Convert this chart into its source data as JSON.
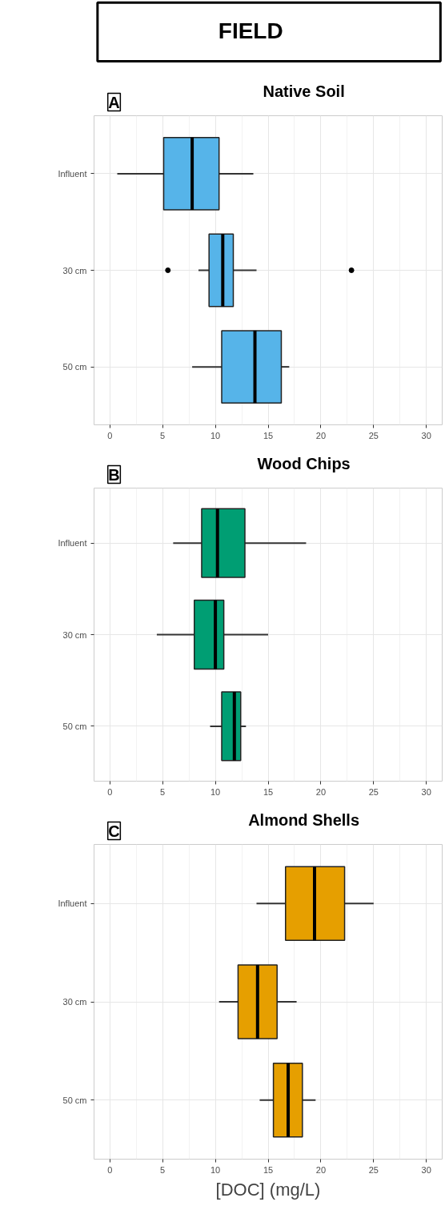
{
  "chart_data": [
    {
      "type": "box",
      "orientation": "horizontal",
      "title": "Native Soil",
      "annotations": [
        "FIELD",
        "A"
      ],
      "categories": [
        "Influent",
        "30 cm",
        "50 cm"
      ],
      "xlim": [
        -1.5,
        31.5
      ],
      "xticks": [
        0,
        5,
        10,
        15,
        20,
        25,
        30
      ],
      "grid": true,
      "series": [
        {
          "color": "#56b4e9",
          "boxes": [
            {
              "low": 0.7,
              "q1": 5.1,
              "median": 7.8,
              "q3": 10.35,
              "high": 13.6
            },
            {
              "low": 8.4,
              "q1": 9.4,
              "median": 10.7,
              "q3": 11.7,
              "high": 13.9,
              "outliers": [
                5.5,
                22.9
              ]
            },
            {
              "low": 7.8,
              "q1": 10.6,
              "median": 13.75,
              "q3": 16.25,
              "high": 17.0
            }
          ]
        }
      ]
    },
    {
      "type": "box",
      "orientation": "horizontal",
      "title": "Wood Chips",
      "annotations": [
        "B"
      ],
      "categories": [
        "Influent",
        "30 cm",
        "50 cm"
      ],
      "xlim": [
        -1.5,
        31.5
      ],
      "xticks": [
        0,
        5,
        10,
        15,
        20,
        25,
        30
      ],
      "grid": true,
      "series": [
        {
          "color": "#009e73",
          "boxes": [
            {
              "low": 6.0,
              "q1": 8.7,
              "median": 10.2,
              "q3": 12.8,
              "high": 18.6
            },
            {
              "low": 4.45,
              "q1": 8.0,
              "median": 10.0,
              "q3": 10.8,
              "high": 15.0
            },
            {
              "low": 9.5,
              "q1": 10.6,
              "median": 11.8,
              "q3": 12.4,
              "high": 12.9
            }
          ]
        }
      ]
    },
    {
      "type": "box",
      "orientation": "horizontal",
      "title": "Almond Shells",
      "xlabel": "[DOC] (mg/L)",
      "annotations": [
        "C"
      ],
      "categories": [
        "Influent",
        "30 cm",
        "50 cm"
      ],
      "xlim": [
        -1.5,
        31.5
      ],
      "xticks": [
        0,
        5,
        10,
        15,
        20,
        25,
        30
      ],
      "grid": true,
      "series": [
        {
          "color": "#e69f00",
          "boxes": [
            {
              "low": 13.9,
              "q1": 16.65,
              "median": 19.4,
              "q3": 22.25,
              "high": 25.0
            },
            {
              "low": 10.35,
              "q1": 12.15,
              "median": 14.0,
              "q3": 15.85,
              "high": 17.7
            },
            {
              "low": 14.2,
              "q1": 15.5,
              "median": 16.9,
              "q3": 18.25,
              "high": 19.5
            }
          ]
        }
      ]
    }
  ]
}
